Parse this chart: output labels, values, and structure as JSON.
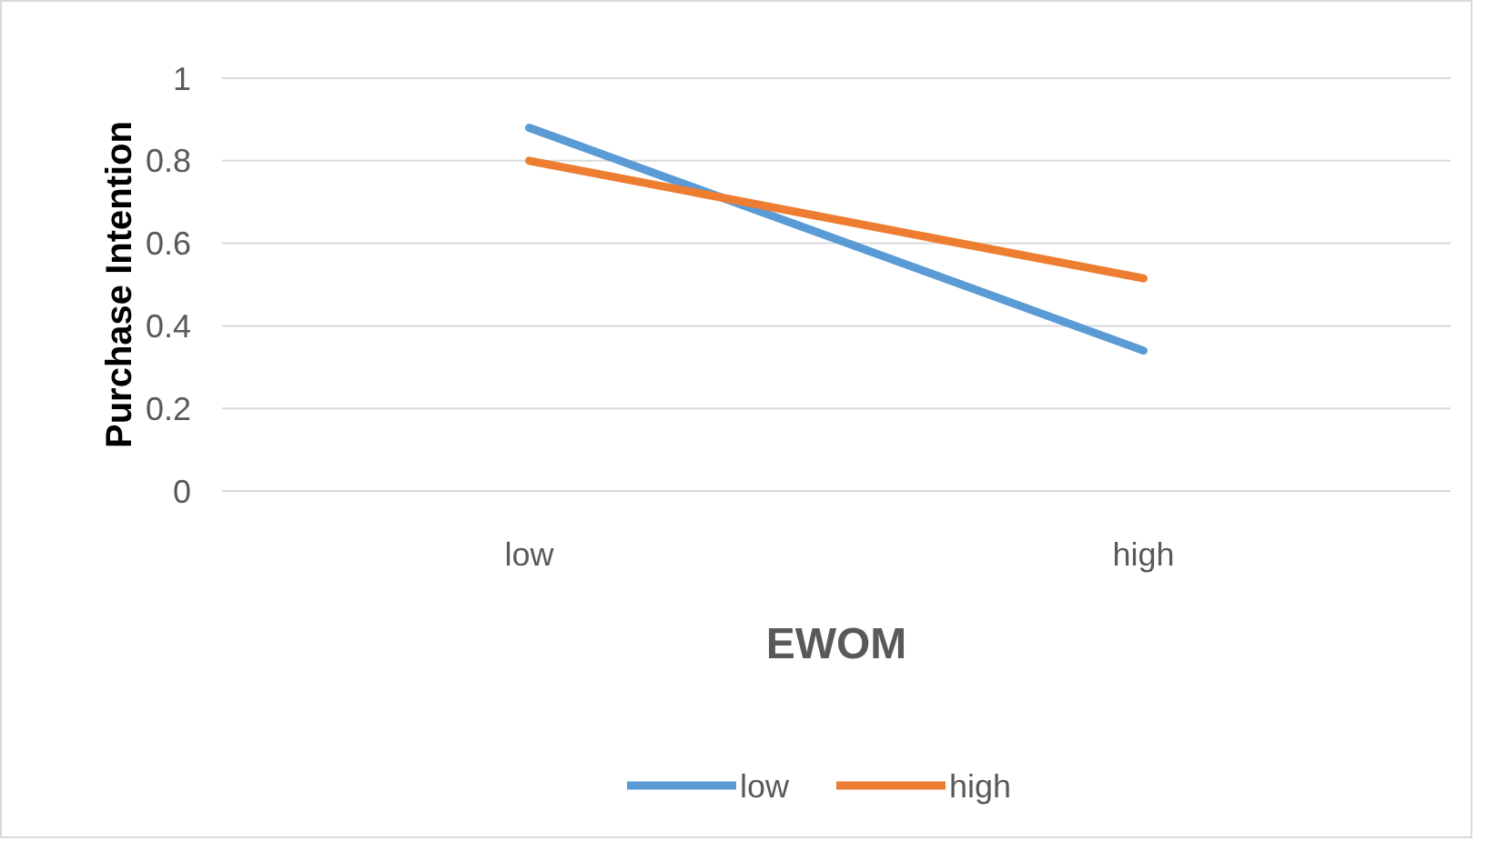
{
  "chart_data": {
    "type": "line",
    "xlabel": "EWOM",
    "ylabel": "Purchase Intention",
    "categories": [
      "low",
      "high"
    ],
    "series": [
      {
        "name": "low",
        "color": "#5b9bd5",
        "values": [
          0.88,
          0.34
        ]
      },
      {
        "name": "high",
        "color": "#ed7d31",
        "values": [
          0.8,
          0.515
        ]
      }
    ],
    "ylim": [
      0,
      1
    ],
    "yticks": [
      0,
      0.2,
      0.4,
      0.6,
      0.8,
      1
    ],
    "grid": "y",
    "legend": "bottom",
    "marker": "none",
    "line_style": "solid"
  }
}
